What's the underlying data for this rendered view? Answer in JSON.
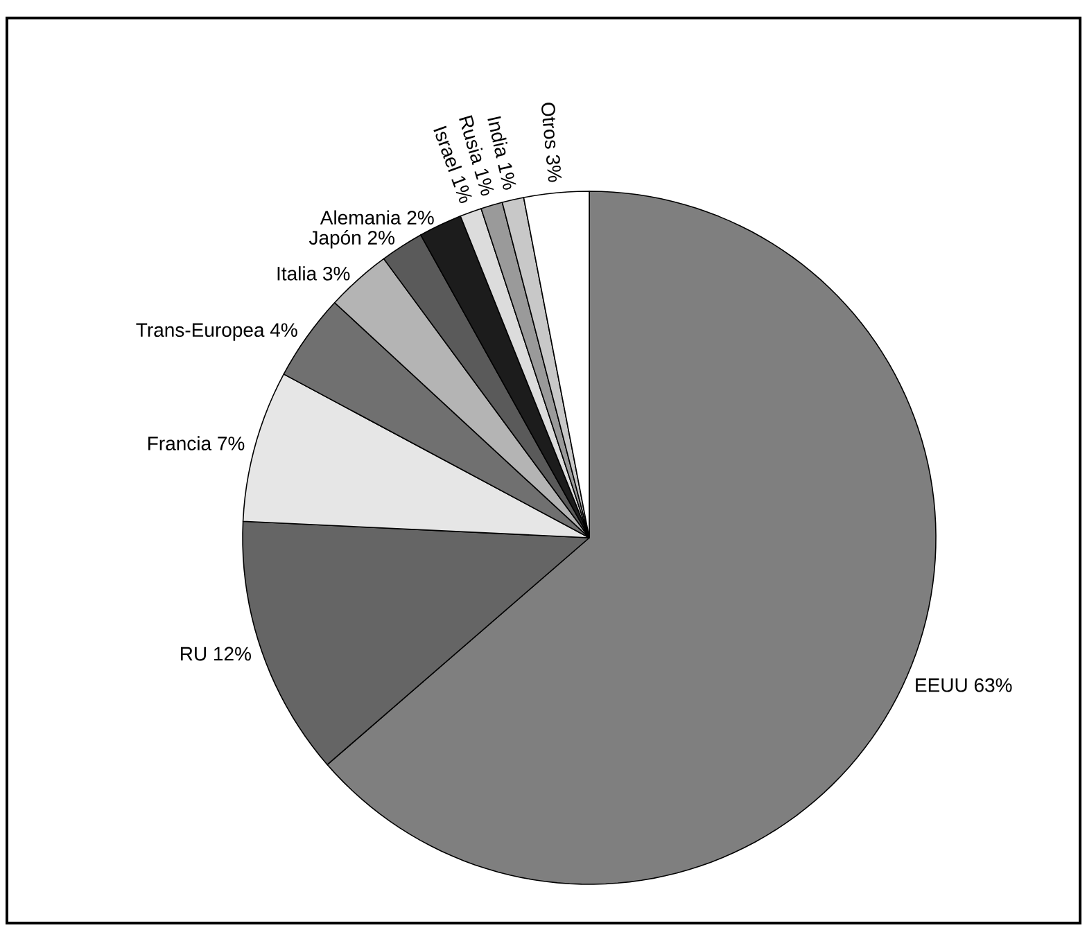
{
  "chart_data": {
    "type": "pie",
    "categories": [
      "EEUU",
      "RU",
      "Francia",
      "Trans-Europea",
      "Italia",
      "Japón",
      "Alemania",
      "Israel",
      "Rusia",
      "India",
      "Otros"
    ],
    "values": [
      63,
      12,
      7,
      4,
      3,
      2,
      2,
      1,
      1,
      1,
      3
    ],
    "value_labels": [
      "63%",
      "12%",
      "7%",
      "4%",
      "3%",
      "2%",
      "2%",
      "1%",
      "1%",
      "1%",
      "3%"
    ],
    "colors": [
      "#7f7f7f",
      "#656565",
      "#e6e6e6",
      "#707070",
      "#b4b4b4",
      "#5a5a5a",
      "#1c1c1c",
      "#dcdcdc",
      "#9a9a9a",
      "#c8c8c8",
      "#ffffff"
    ]
  }
}
